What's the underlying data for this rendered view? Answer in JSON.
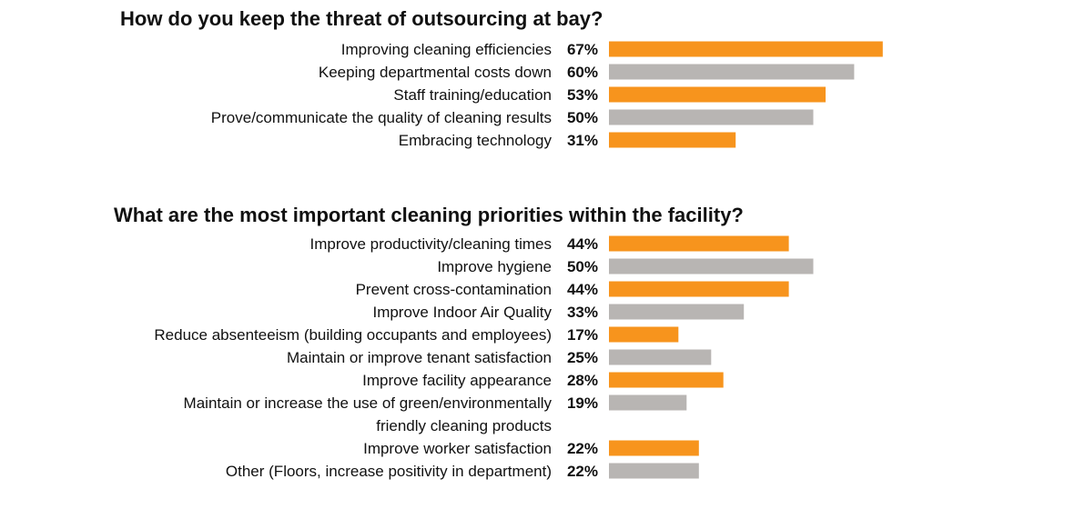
{
  "colors": {
    "orange": "#f7941d",
    "gray": "#b8b5b3",
    "text": "#111111"
  },
  "chart_data": [
    {
      "type": "bar",
      "orientation": "horizontal",
      "title": "How do you keep the threat of outsourcing at bay?",
      "value_suffix": "%",
      "xlim": [
        0,
        100
      ],
      "grid": false,
      "bar_colors": [
        "orange",
        "gray",
        "orange",
        "gray",
        "orange"
      ],
      "categories": [
        [
          "Improving cleaning efficiencies"
        ],
        [
          "Keeping departmental costs down"
        ],
        [
          "Staff training/education"
        ],
        [
          "Prove/communicate the quality of cleaning results"
        ],
        [
          "Embracing technology"
        ]
      ],
      "values": [
        67,
        60,
        53,
        50,
        31
      ]
    },
    {
      "type": "bar",
      "orientation": "horizontal",
      "title": "What are the most important cleaning priorities within the facility?",
      "value_suffix": "%",
      "xlim": [
        0,
        100
      ],
      "grid": false,
      "bar_colors": [
        "orange",
        "gray",
        "orange",
        "gray",
        "orange",
        "gray",
        "orange",
        "gray",
        "orange",
        "gray"
      ],
      "categories": [
        [
          "Improve productivity/cleaning times"
        ],
        [
          "Improve hygiene"
        ],
        [
          "Prevent cross-contamination"
        ],
        [
          "Improve Indoor Air Quality"
        ],
        [
          "Reduce absenteeism (building occupants and employees)"
        ],
        [
          "Maintain or improve tenant satisfaction"
        ],
        [
          "Improve facility appearance"
        ],
        [
          "Maintain or increase the use of green/environmentally",
          "friendly cleaning products"
        ],
        [
          "Improve worker satisfaction"
        ],
        [
          "Other (Floors, increase positivity in department)"
        ]
      ],
      "values": [
        44,
        50,
        44,
        33,
        17,
        25,
        28,
        19,
        22,
        22
      ]
    }
  ]
}
